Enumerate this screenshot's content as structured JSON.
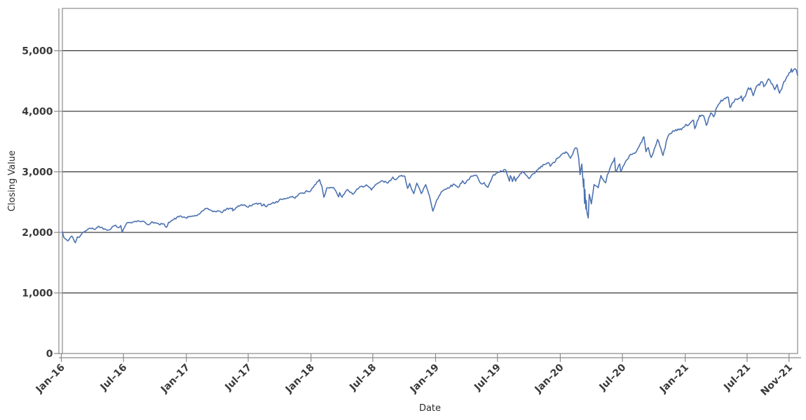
{
  "chart_data": {
    "type": "line",
    "title": "",
    "xlabel": "Date",
    "ylabel": "Closing Value",
    "x_domain": [
      "2016-01-04",
      "2021-11-26"
    ],
    "y_domain": [
      0,
      5700
    ],
    "grid": "horizontal",
    "legend": "none",
    "colors": {
      "line": "#4C72B0",
      "grid": "#111111",
      "spine": "#8a8a8a",
      "tick_label": "#3a3a3a",
      "background": "#ffffff"
    },
    "y_ticks": [
      {
        "value": 0,
        "label": "0"
      },
      {
        "value": 1000,
        "label": "1,000"
      },
      {
        "value": 2000,
        "label": "2,000"
      },
      {
        "value": 3000,
        "label": "3,000"
      },
      {
        "value": 4000,
        "label": "4,000"
      },
      {
        "value": 5000,
        "label": "5,000"
      }
    ],
    "x_ticks": [
      {
        "date": "2016-01-01",
        "label": "Jan–16"
      },
      {
        "date": "2016-07-01",
        "label": "Jul–16"
      },
      {
        "date": "2017-01-01",
        "label": "Jan–17"
      },
      {
        "date": "2017-07-01",
        "label": "Jul–17"
      },
      {
        "date": "2018-01-01",
        "label": "Jan–18"
      },
      {
        "date": "2018-07-01",
        "label": "Jul–18"
      },
      {
        "date": "2019-01-01",
        "label": "Jan–19"
      },
      {
        "date": "2019-07-01",
        "label": "Jul–19"
      },
      {
        "date": "2020-01-01",
        "label": "Jan–20"
      },
      {
        "date": "2020-07-01",
        "label": "Jul–20"
      },
      {
        "date": "2021-01-01",
        "label": "Jan–21"
      },
      {
        "date": "2021-07-01",
        "label": "Jul–21"
      },
      {
        "date": "2021-11-01",
        "label": "Nov–21"
      }
    ],
    "render": {
      "noise_pct": 0.006,
      "noise_step_days": 3,
      "seed": 42
    },
    "series": [
      {
        "name": "Closing Value",
        "color": "#4C72B0",
        "points": [
          [
            "2016-01-04",
            2013
          ],
          [
            "2016-01-08",
            1922
          ],
          [
            "2016-01-13",
            1890
          ],
          [
            "2016-01-20",
            1859
          ],
          [
            "2016-01-26",
            1904
          ],
          [
            "2016-02-01",
            1939
          ],
          [
            "2016-02-11",
            1829
          ],
          [
            "2016-02-17",
            1926
          ],
          [
            "2016-02-23",
            1921
          ],
          [
            "2016-03-01",
            1978
          ],
          [
            "2016-03-11",
            2022
          ],
          [
            "2016-03-18",
            2050
          ],
          [
            "2016-04-01",
            2073
          ],
          [
            "2016-04-08",
            2048
          ],
          [
            "2016-04-20",
            2102
          ],
          [
            "2016-05-06",
            2057
          ],
          [
            "2016-05-19",
            2040
          ],
          [
            "2016-06-02",
            2105
          ],
          [
            "2016-06-08",
            2119
          ],
          [
            "2016-06-16",
            2078
          ],
          [
            "2016-06-23",
            2113
          ],
          [
            "2016-06-27",
            2001
          ],
          [
            "2016-07-08",
            2130
          ],
          [
            "2016-07-14",
            2164
          ],
          [
            "2016-07-29",
            2174
          ],
          [
            "2016-08-15",
            2190
          ],
          [
            "2016-09-01",
            2171
          ],
          [
            "2016-09-09",
            2128
          ],
          [
            "2016-09-13",
            2127
          ],
          [
            "2016-09-22",
            2177
          ],
          [
            "2016-10-13",
            2133
          ],
          [
            "2016-10-25",
            2143
          ],
          [
            "2016-11-04",
            2085
          ],
          [
            "2016-11-10",
            2168
          ],
          [
            "2016-11-25",
            2213
          ],
          [
            "2016-12-13",
            2271
          ],
          [
            "2016-12-30",
            2239
          ],
          [
            "2017-01-20",
            2271
          ],
          [
            "2017-02-02",
            2281
          ],
          [
            "2017-02-21",
            2365
          ],
          [
            "2017-03-01",
            2396
          ],
          [
            "2017-03-14",
            2365
          ],
          [
            "2017-03-27",
            2342
          ],
          [
            "2017-04-05",
            2353
          ],
          [
            "2017-04-13",
            2329
          ],
          [
            "2017-04-28",
            2384
          ],
          [
            "2017-05-16",
            2400
          ],
          [
            "2017-05-17",
            2357
          ],
          [
            "2017-06-02",
            2439
          ],
          [
            "2017-06-19",
            2453
          ],
          [
            "2017-06-29",
            2420
          ],
          [
            "2017-07-14",
            2459
          ],
          [
            "2017-08-07",
            2481
          ],
          [
            "2017-08-10",
            2438
          ],
          [
            "2017-08-16",
            2468
          ],
          [
            "2017-08-21",
            2428
          ],
          [
            "2017-09-12",
            2496
          ],
          [
            "2017-09-25",
            2497
          ],
          [
            "2017-10-05",
            2552
          ],
          [
            "2017-10-23",
            2565
          ],
          [
            "2017-11-08",
            2594
          ],
          [
            "2017-11-15",
            2565
          ],
          [
            "2017-11-30",
            2648
          ],
          [
            "2017-12-14",
            2652
          ],
          [
            "2017-12-18",
            2690
          ],
          [
            "2017-12-29",
            2674
          ],
          [
            "2018-01-12",
            2786
          ],
          [
            "2018-01-26",
            2873
          ],
          [
            "2018-02-02",
            2762
          ],
          [
            "2018-02-08",
            2581
          ],
          [
            "2018-02-16",
            2732
          ],
          [
            "2018-02-27",
            2744
          ],
          [
            "2018-03-08",
            2739
          ],
          [
            "2018-03-23",
            2588
          ],
          [
            "2018-03-26",
            2658
          ],
          [
            "2018-04-02",
            2582
          ],
          [
            "2018-04-18",
            2708
          ],
          [
            "2018-05-03",
            2630
          ],
          [
            "2018-05-21",
            2733
          ],
          [
            "2018-06-12",
            2786
          ],
          [
            "2018-06-27",
            2700
          ],
          [
            "2018-07-13",
            2801
          ],
          [
            "2018-07-25",
            2846
          ],
          [
            "2018-08-15",
            2818
          ],
          [
            "2018-08-29",
            2914
          ],
          [
            "2018-09-07",
            2871
          ],
          [
            "2018-09-20",
            2931
          ],
          [
            "2018-10-03",
            2925
          ],
          [
            "2018-10-11",
            2728
          ],
          [
            "2018-10-17",
            2809
          ],
          [
            "2018-10-29",
            2641
          ],
          [
            "2018-11-07",
            2814
          ],
          [
            "2018-11-20",
            2642
          ],
          [
            "2018-12-03",
            2790
          ],
          [
            "2018-12-14",
            2600
          ],
          [
            "2018-12-24",
            2351
          ],
          [
            "2019-01-04",
            2532
          ],
          [
            "2019-01-18",
            2671
          ],
          [
            "2019-02-05",
            2738
          ],
          [
            "2019-02-25",
            2794
          ],
          [
            "2019-03-08",
            2743
          ],
          [
            "2019-03-21",
            2855
          ],
          [
            "2019-03-27",
            2805
          ],
          [
            "2019-04-12",
            2907
          ],
          [
            "2019-04-30",
            2946
          ],
          [
            "2019-05-13",
            2811
          ],
          [
            "2019-05-23",
            2822
          ],
          [
            "2019-06-03",
            2744
          ],
          [
            "2019-06-20",
            2954
          ],
          [
            "2019-07-03",
            2996
          ],
          [
            "2019-07-26",
            3026
          ],
          [
            "2019-08-05",
            2845
          ],
          [
            "2019-08-08",
            2938
          ],
          [
            "2019-08-14",
            2841
          ],
          [
            "2019-08-19",
            2924
          ],
          [
            "2019-08-23",
            2847
          ],
          [
            "2019-09-12",
            3009
          ],
          [
            "2019-10-02",
            2888
          ],
          [
            "2019-10-28",
            3039
          ],
          [
            "2019-11-15",
            3120
          ],
          [
            "2019-11-27",
            3154
          ],
          [
            "2019-12-03",
            3093
          ],
          [
            "2019-12-27",
            3240
          ],
          [
            "2020-01-17",
            3330
          ],
          [
            "2020-01-31",
            3226
          ],
          [
            "2020-02-12",
            3379
          ],
          [
            "2020-02-19",
            3386
          ],
          [
            "2020-02-24",
            3226
          ],
          [
            "2020-02-28",
            2954
          ],
          [
            "2020-03-04",
            3130
          ],
          [
            "2020-03-09",
            2747
          ],
          [
            "2020-03-10",
            2882
          ],
          [
            "2020-03-12",
            2481
          ],
          [
            "2020-03-13",
            2711
          ],
          [
            "2020-03-16",
            2386
          ],
          [
            "2020-03-17",
            2529
          ],
          [
            "2020-03-18",
            2398
          ],
          [
            "2020-03-20",
            2305
          ],
          [
            "2020-03-23",
            2237
          ],
          [
            "2020-03-26",
            2630
          ],
          [
            "2020-04-01",
            2471
          ],
          [
            "2020-04-09",
            2790
          ],
          [
            "2020-04-21",
            2737
          ],
          [
            "2020-04-29",
            2940
          ],
          [
            "2020-05-13",
            2820
          ],
          [
            "2020-05-18",
            2954
          ],
          [
            "2020-06-08",
            3232
          ],
          [
            "2020-06-11",
            3002
          ],
          [
            "2020-06-23",
            3131
          ],
          [
            "2020-06-26",
            3009
          ],
          [
            "2020-07-22",
            3276
          ],
          [
            "2020-08-11",
            3333
          ],
          [
            "2020-09-02",
            3581
          ],
          [
            "2020-09-08",
            3332
          ],
          [
            "2020-09-15",
            3401
          ],
          [
            "2020-09-23",
            3237
          ],
          [
            "2020-10-12",
            3534
          ],
          [
            "2020-10-28",
            3271
          ],
          [
            "2020-11-09",
            3550
          ],
          [
            "2020-11-16",
            3627
          ],
          [
            "2020-12-04",
            3699
          ],
          [
            "2020-12-21",
            3695
          ],
          [
            "2020-12-31",
            3756
          ],
          [
            "2021-01-14",
            3796
          ],
          [
            "2021-01-25",
            3855
          ],
          [
            "2021-01-29",
            3714
          ],
          [
            "2021-02-12",
            3935
          ],
          [
            "2021-02-24",
            3925
          ],
          [
            "2021-03-04",
            3768
          ],
          [
            "2021-03-17",
            3974
          ],
          [
            "2021-03-25",
            3910
          ],
          [
            "2021-04-05",
            4078
          ],
          [
            "2021-04-16",
            4185
          ],
          [
            "2021-04-29",
            4211
          ],
          [
            "2021-05-07",
            4233
          ],
          [
            "2021-05-12",
            4063
          ],
          [
            "2021-05-27",
            4201
          ],
          [
            "2021-06-03",
            4193
          ],
          [
            "2021-06-14",
            4255
          ],
          [
            "2021-06-18",
            4166
          ],
          [
            "2021-07-02",
            4352
          ],
          [
            "2021-07-12",
            4385
          ],
          [
            "2021-07-19",
            4258
          ],
          [
            "2021-07-29",
            4419
          ],
          [
            "2021-08-16",
            4480
          ],
          [
            "2021-08-19",
            4406
          ],
          [
            "2021-09-02",
            4537
          ],
          [
            "2021-09-10",
            4459
          ],
          [
            "2021-09-14",
            4443
          ],
          [
            "2021-09-20",
            4358
          ],
          [
            "2021-09-27",
            4443
          ],
          [
            "2021-10-04",
            4300
          ],
          [
            "2021-10-14",
            4438
          ],
          [
            "2021-10-26",
            4575
          ],
          [
            "2021-11-08",
            4702
          ],
          [
            "2021-11-10",
            4647
          ],
          [
            "2021-11-18",
            4705
          ],
          [
            "2021-11-22",
            4683
          ],
          [
            "2021-11-26",
            4595
          ]
        ]
      }
    ]
  }
}
